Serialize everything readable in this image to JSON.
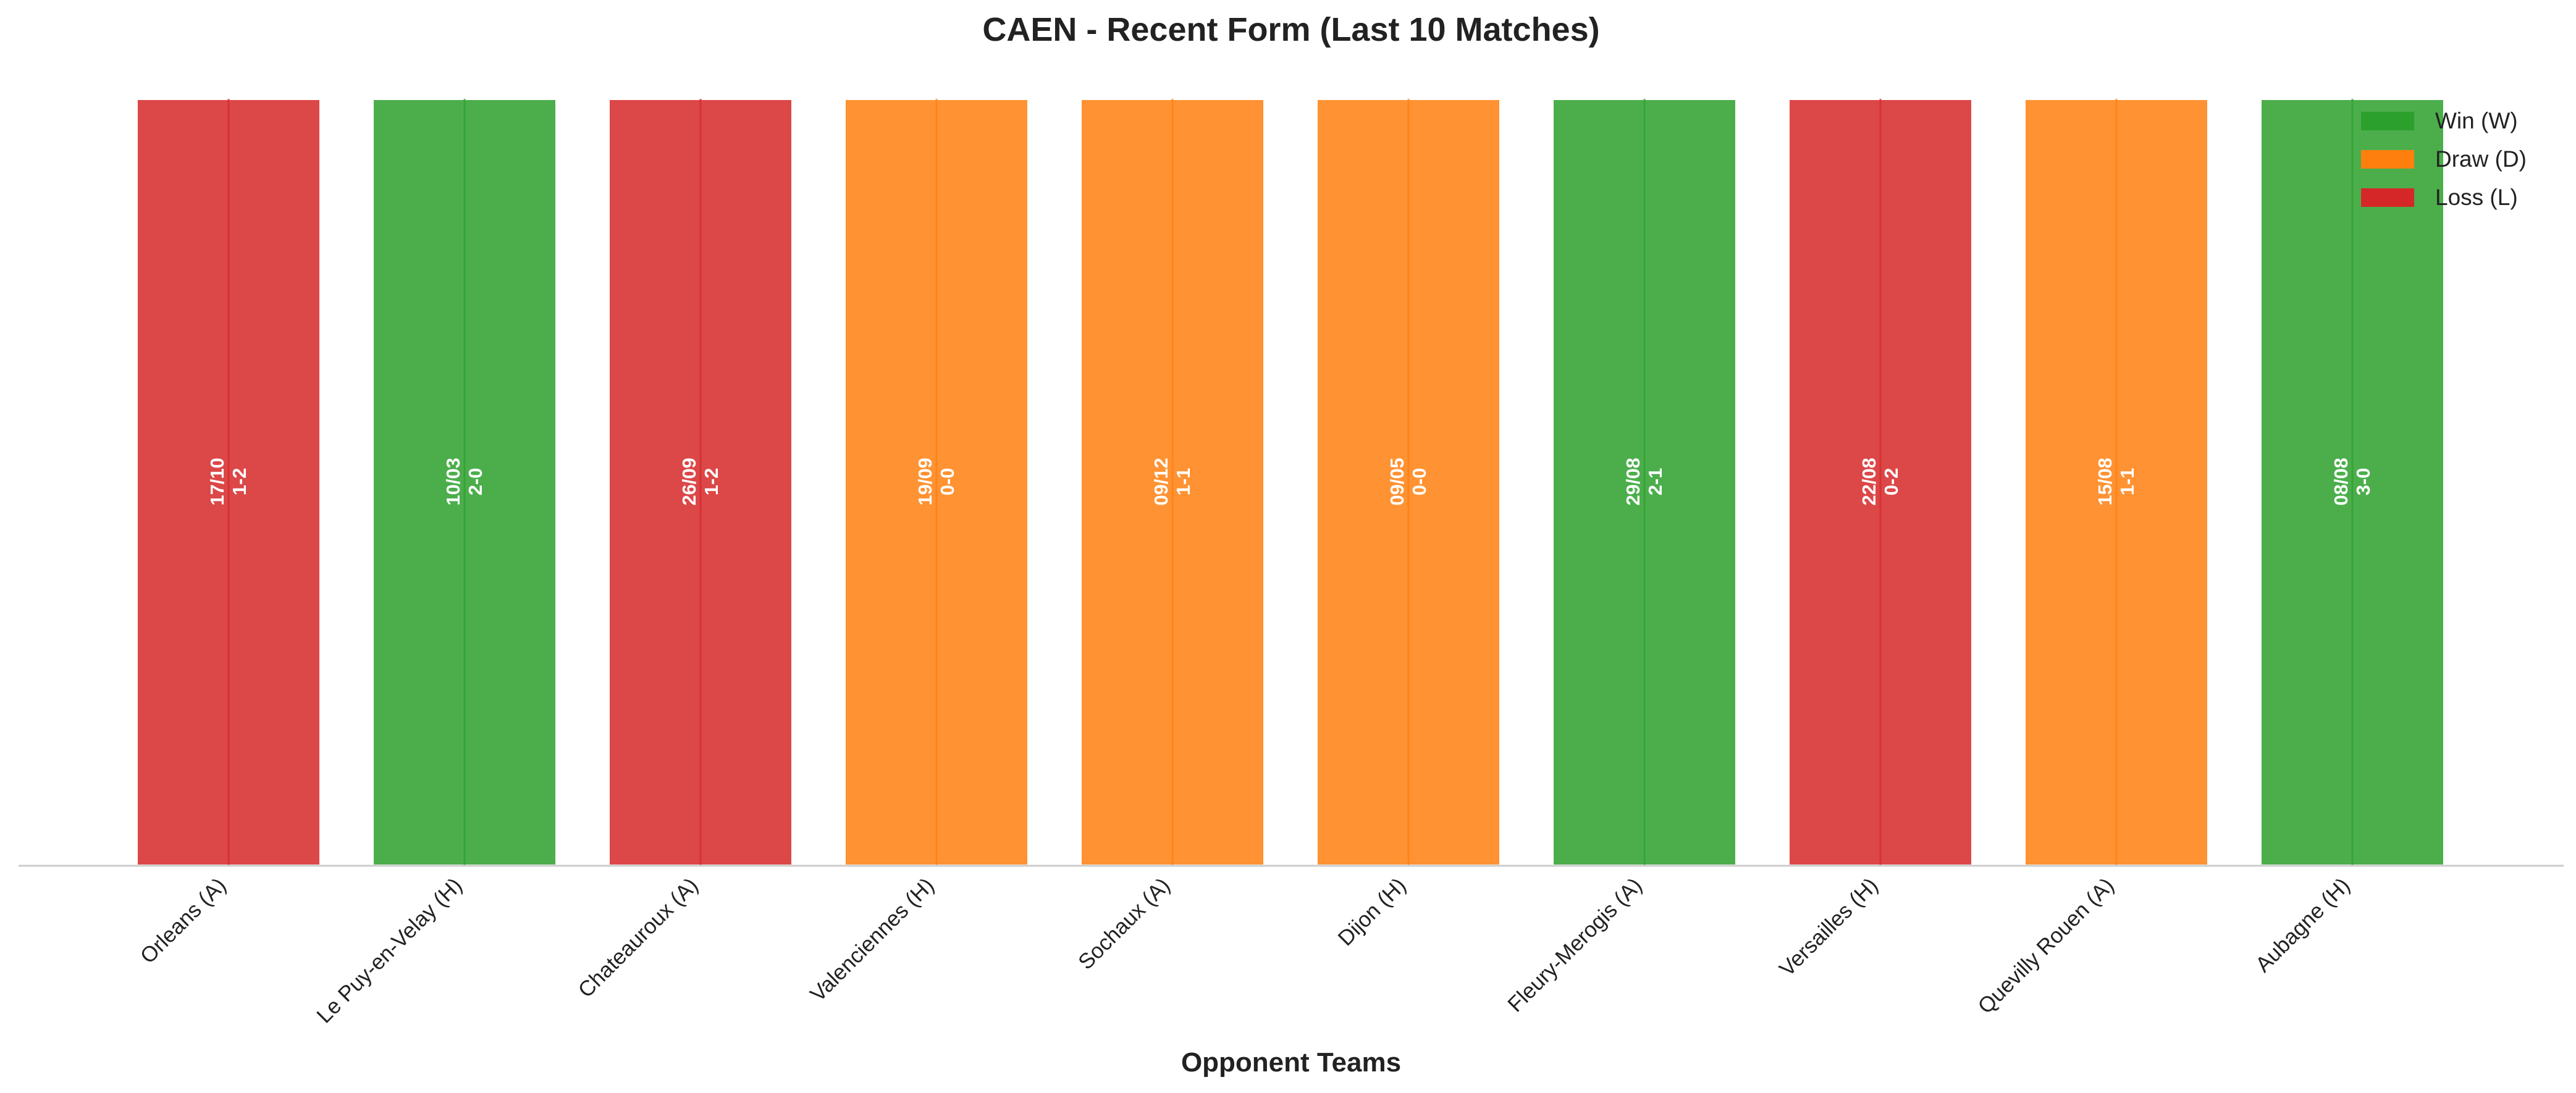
{
  "chart_data": {
    "type": "bar",
    "title": "CAEN - Recent Form (Last 10 Matches)",
    "xlabel": "Opponent Teams",
    "ylabel": "",
    "grid": false,
    "legend_position": "top-right",
    "categories": [
      "Orleans (A)",
      "Le Puy-en-Velay (H)",
      "Chateauroux (A)",
      "Valenciennes (H)",
      "Sochaux (A)",
      "Dijon (H)",
      "Fleury-Merogis (A)",
      "Versailles (H)",
      "Quevilly Rouen (A)",
      "Aubagne (H)"
    ],
    "values": [
      1,
      1,
      1,
      1,
      1,
      1,
      1,
      1,
      1,
      1
    ],
    "results": [
      "L",
      "W",
      "L",
      "D",
      "D",
      "D",
      "W",
      "L",
      "D",
      "W"
    ],
    "dates": [
      "17/10",
      "10/03",
      "26/09",
      "19/09",
      "09/12",
      "09/05",
      "29/08",
      "22/08",
      "15/08",
      "08/08"
    ],
    "scores": [
      "1-2",
      "2-0",
      "1-2",
      "0-0",
      "1-1",
      "0-0",
      "2-1",
      "0-2",
      "1-1",
      "3-0"
    ],
    "legend": [
      {
        "key": "W",
        "label": "Win (W)",
        "color": "#2ca02c"
      },
      {
        "key": "D",
        "label": "Draw (D)",
        "color": "#ff7f0e"
      },
      {
        "key": "L",
        "label": "Loss (L)",
        "color": "#d62728"
      }
    ]
  }
}
